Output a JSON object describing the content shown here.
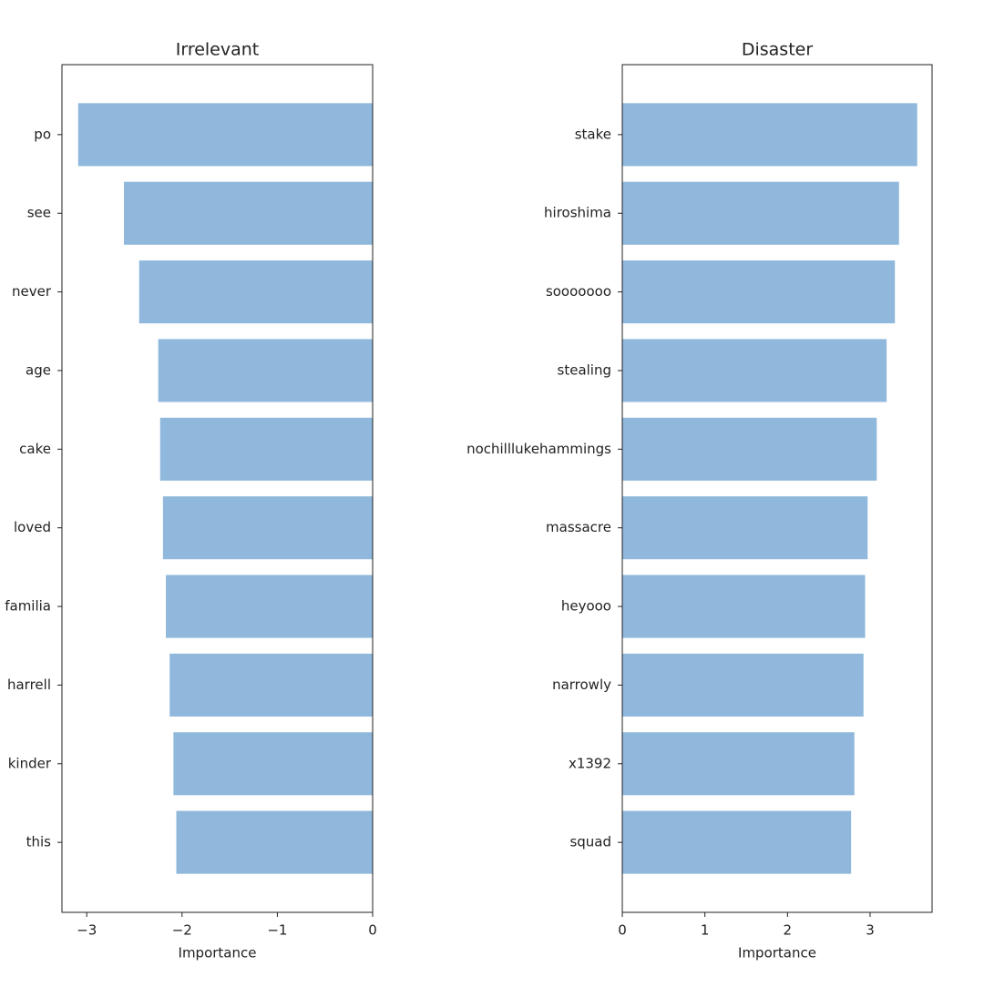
{
  "chart_data": [
    {
      "type": "barh",
      "title": "Irrelevant",
      "xlabel": "Importance",
      "categories": [
        "po",
        "see",
        "never",
        "age",
        "cake",
        "loved",
        "familia",
        "harrell",
        "kinder",
        "this"
      ],
      "values": [
        -3.09,
        -2.61,
        -2.45,
        -2.25,
        -2.23,
        -2.2,
        -2.17,
        -2.13,
        -2.09,
        -2.06
      ],
      "color": "#8fb8dc",
      "xlim": [
        -3.26,
        0
      ],
      "xticks": [
        {
          "value": -3,
          "label": "−3"
        },
        {
          "value": -2,
          "label": "−2"
        },
        {
          "value": -1,
          "label": "−1"
        },
        0
      ]
    },
    {
      "type": "barh",
      "title": "Disaster",
      "xlabel": "Importance",
      "categories": [
        "stake",
        "hiroshima",
        "sooooooo",
        "stealing",
        "nochilllukehammings",
        "massacre",
        "heyooo",
        "narrowly",
        "x1392",
        "squad"
      ],
      "values": [
        3.57,
        3.35,
        3.3,
        3.2,
        3.08,
        2.97,
        2.94,
        2.92,
        2.81,
        2.77
      ],
      "color": "#8fb8dc",
      "xlim": [
        0,
        3.75
      ],
      "xticks": [
        0,
        1,
        2,
        3
      ]
    }
  ]
}
